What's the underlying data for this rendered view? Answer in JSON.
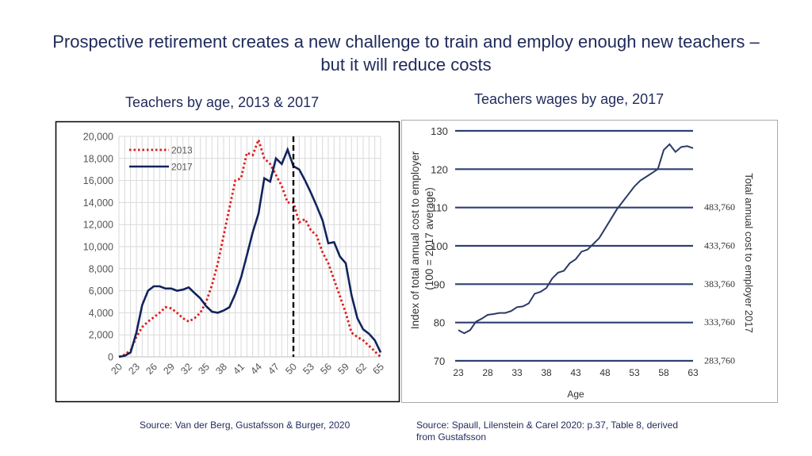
{
  "slide": {
    "title": "Prospective retirement creates a new challenge to train and employ enough new teachers – but it will reduce costs",
    "left_subtitle": "Teachers by age, 2013 & 2017",
    "right_subtitle": "Teachers wages by age, 2017",
    "left_source": "Source: Van der Berg, Gustafsson & Burger, 2020",
    "right_source": "Source: Spaull, Lilenstein & Carel 2020:  p.37, Table 8, derived from Gustafsson"
  },
  "colors": {
    "series_2013": "#e0191b",
    "series_2017": "#12245c",
    "marker_line": "#000000",
    "right_line": "#2b3a66"
  },
  "chart_data": [
    {
      "type": "line",
      "x": [
        20,
        21,
        22,
        23,
        24,
        25,
        26,
        27,
        28,
        29,
        30,
        31,
        32,
        33,
        34,
        35,
        36,
        37,
        38,
        39,
        40,
        41,
        42,
        43,
        44,
        45,
        46,
        47,
        48,
        49,
        50,
        51,
        52,
        53,
        54,
        55,
        56,
        57,
        58,
        59,
        60,
        61,
        62,
        63,
        64,
        65
      ],
      "x_tick_labels": [
        "20",
        "23",
        "26",
        "29",
        "32",
        "35",
        "38",
        "41",
        "44",
        "47",
        "50",
        "53",
        "56",
        "59",
        "62",
        "65"
      ],
      "series": [
        {
          "name": "2013",
          "style": "dotted",
          "values": [
            0,
            200,
            600,
            1800,
            2700,
            3200,
            3600,
            4000,
            4500,
            4400,
            4000,
            3500,
            3200,
            3500,
            4000,
            5000,
            6500,
            8500,
            11000,
            13500,
            16000,
            16200,
            18500,
            18300,
            19700,
            18000,
            17500,
            16500,
            15500,
            14000,
            14000,
            12200,
            12500,
            11500,
            11000,
            9500,
            8500,
            7000,
            5500,
            4000,
            2200,
            1800,
            1500,
            1000,
            500,
            0
          ]
        },
        {
          "name": "2017",
          "style": "solid",
          "values": [
            0,
            100,
            400,
            2200,
            4700,
            6000,
            6400,
            6400,
            6200,
            6200,
            6000,
            6100,
            6300,
            5800,
            5300,
            4600,
            4100,
            4000,
            4200,
            4500,
            5700,
            7200,
            9200,
            11300,
            13000,
            16200,
            15900,
            18000,
            17500,
            18800,
            17300,
            17000,
            16000,
            14900,
            13700,
            12400,
            10300,
            10400,
            9100,
            8500,
            5600,
            3500,
            2500,
            2100,
            1500,
            400
          ]
        }
      ],
      "ylim": [
        0,
        20000
      ],
      "y_ticks": [
        "0",
        "2,000",
        "4,000",
        "6,000",
        "8,000",
        "10,000",
        "12,000",
        "14,000",
        "16,000",
        "18,000",
        "20,000"
      ],
      "vertical_marker": {
        "x": 50,
        "style": "dashed"
      },
      "grid": true,
      "legend_position": "top-left"
    },
    {
      "type": "line",
      "x": [
        23,
        24,
        25,
        26,
        27,
        28,
        29,
        30,
        31,
        32,
        33,
        34,
        35,
        36,
        37,
        38,
        39,
        40,
        41,
        42,
        43,
        44,
        45,
        46,
        47,
        48,
        49,
        50,
        51,
        52,
        53,
        54,
        55,
        56,
        57,
        58,
        59,
        60,
        61,
        62,
        63
      ],
      "series": [
        {
          "values": [
            78,
            77.2,
            78,
            80.2,
            81,
            82,
            82.2,
            82.5,
            82.5,
            83,
            84,
            84.2,
            85,
            87.5,
            88,
            89,
            91.5,
            93,
            93.5,
            95.5,
            96.5,
            98.5,
            99,
            100.5,
            102,
            104.5,
            107,
            109.5,
            111.5,
            113.5,
            115.5,
            117,
            118,
            119,
            120,
            125,
            126.5,
            124.5,
            125.8,
            126,
            125.5
          ]
        }
      ],
      "xlabel": "Age",
      "ylabel": "Index of total annual cost to employer (100 = 2017 average)",
      "y2label": "Total annual cost to employer 2017",
      "ylim": [
        70,
        130
      ],
      "xlim": [
        23,
        63
      ],
      "x_ticks": [
        "23",
        "28",
        "33",
        "38",
        "43",
        "48",
        "53",
        "58",
        "63"
      ],
      "y_ticks": [
        "70",
        "80",
        "90",
        "100",
        "110",
        "120",
        "130"
      ],
      "y2_ticks": [
        "283,760",
        "333,760",
        "383,760",
        "433,760",
        "483,760"
      ],
      "grid": true
    }
  ]
}
